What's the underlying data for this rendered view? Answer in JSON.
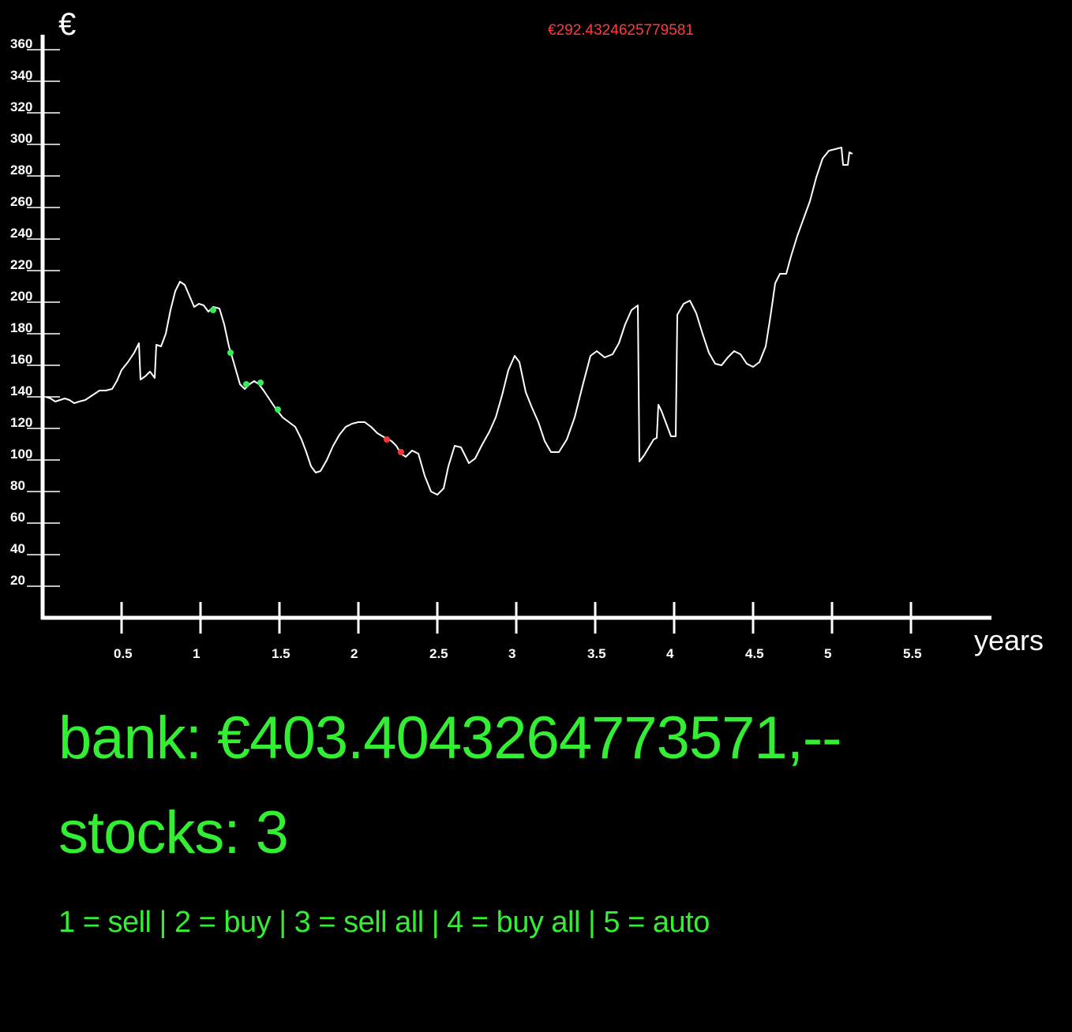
{
  "chart_data": {
    "type": "line",
    "title": "",
    "ylabel": "€",
    "xlabel": "years",
    "current_price_label": "€292.4324625779581",
    "xlim": [
      0,
      6
    ],
    "ylim": [
      0,
      370
    ],
    "y_ticks": [
      20,
      40,
      60,
      80,
      100,
      120,
      140,
      160,
      180,
      200,
      220,
      240,
      260,
      280,
      300,
      320,
      340,
      360
    ],
    "x_ticks": [
      0.5,
      1,
      1.5,
      2,
      2.5,
      3,
      3.5,
      4,
      4.5,
      5,
      5.5
    ],
    "x_tick_labels": [
      "0.5",
      "1",
      "1.5",
      "2",
      "2.5",
      "3",
      "3.5",
      "4",
      "4.5",
      "5",
      "5.5"
    ],
    "grid": false,
    "series": [
      {
        "color": "#ffffff",
        "points": [
          [
            0.02,
            140
          ],
          [
            0.05,
            139
          ],
          [
            0.08,
            137
          ],
          [
            0.11,
            138
          ],
          [
            0.14,
            139
          ],
          [
            0.17,
            138
          ],
          [
            0.2,
            136
          ],
          [
            0.23,
            137
          ],
          [
            0.27,
            138
          ],
          [
            0.3,
            140
          ],
          [
            0.33,
            142
          ],
          [
            0.36,
            144
          ],
          [
            0.4,
            144
          ],
          [
            0.44,
            145
          ],
          [
            0.47,
            150
          ],
          [
            0.5,
            157
          ],
          [
            0.54,
            162
          ],
          [
            0.58,
            168
          ],
          [
            0.61,
            174
          ],
          [
            0.62,
            151
          ],
          [
            0.65,
            153
          ],
          [
            0.68,
            156
          ],
          [
            0.71,
            152
          ],
          [
            0.72,
            173
          ],
          [
            0.75,
            172
          ],
          [
            0.78,
            180
          ],
          [
            0.81,
            195
          ],
          [
            0.84,
            207
          ],
          [
            0.87,
            213
          ],
          [
            0.9,
            211
          ],
          [
            0.93,
            204
          ],
          [
            0.96,
            197
          ],
          [
            0.99,
            199
          ],
          [
            1.02,
            198
          ],
          [
            1.05,
            194
          ],
          [
            1.08,
            197
          ],
          [
            1.12,
            196
          ],
          [
            1.15,
            186
          ],
          [
            1.18,
            172
          ],
          [
            1.21,
            162
          ],
          [
            1.23,
            155
          ],
          [
            1.25,
            148
          ],
          [
            1.28,
            145
          ],
          [
            1.31,
            148
          ],
          [
            1.34,
            150
          ],
          [
            1.37,
            148
          ],
          [
            1.4,
            144
          ],
          [
            1.44,
            138
          ],
          [
            1.48,
            132
          ],
          [
            1.52,
            127
          ],
          [
            1.56,
            124
          ],
          [
            1.6,
            121
          ],
          [
            1.64,
            113
          ],
          [
            1.67,
            105
          ],
          [
            1.7,
            96
          ],
          [
            1.73,
            92
          ],
          [
            1.76,
            93
          ],
          [
            1.8,
            100
          ],
          [
            1.84,
            109
          ],
          [
            1.88,
            116
          ],
          [
            1.92,
            121
          ],
          [
            1.96,
            123
          ],
          [
            2.0,
            124
          ],
          [
            2.04,
            124
          ],
          [
            2.08,
            121
          ],
          [
            2.12,
            117
          ],
          [
            2.17,
            114
          ],
          [
            2.21,
            112
          ],
          [
            2.24,
            109
          ],
          [
            2.27,
            104
          ],
          [
            2.3,
            102
          ],
          [
            2.34,
            106
          ],
          [
            2.38,
            104
          ],
          [
            2.42,
            90
          ],
          [
            2.46,
            80
          ],
          [
            2.5,
            78
          ],
          [
            2.54,
            82
          ],
          [
            2.57,
            96
          ],
          [
            2.61,
            109
          ],
          [
            2.65,
            108
          ],
          [
            2.7,
            98
          ],
          [
            2.74,
            101
          ],
          [
            2.78,
            109
          ],
          [
            2.83,
            118
          ],
          [
            2.87,
            127
          ],
          [
            2.91,
            141
          ],
          [
            2.95,
            157
          ],
          [
            2.99,
            166
          ],
          [
            3.02,
            162
          ],
          [
            3.06,
            143
          ],
          [
            3.1,
            133
          ],
          [
            3.14,
            124
          ],
          [
            3.18,
            112
          ],
          [
            3.22,
            105
          ],
          [
            3.27,
            105
          ],
          [
            3.32,
            113
          ],
          [
            3.37,
            127
          ],
          [
            3.42,
            147
          ],
          [
            3.47,
            166
          ],
          [
            3.51,
            169
          ],
          [
            3.56,
            165
          ],
          [
            3.61,
            167
          ],
          [
            3.65,
            174
          ],
          [
            3.69,
            186
          ],
          [
            3.73,
            195
          ],
          [
            3.77,
            198
          ],
          [
            3.78,
            99
          ],
          [
            3.81,
            103
          ],
          [
            3.84,
            108
          ],
          [
            3.87,
            113
          ],
          [
            3.89,
            114
          ],
          [
            3.9,
            135
          ],
          [
            3.92,
            131
          ],
          [
            3.95,
            123
          ],
          [
            3.98,
            115
          ],
          [
            4.01,
            115
          ],
          [
            4.02,
            192
          ],
          [
            4.06,
            199
          ],
          [
            4.1,
            201
          ],
          [
            4.14,
            193
          ],
          [
            4.18,
            180
          ],
          [
            4.22,
            168
          ],
          [
            4.26,
            161
          ],
          [
            4.3,
            160
          ],
          [
            4.34,
            165
          ],
          [
            4.38,
            169
          ],
          [
            4.42,
            167
          ],
          [
            4.46,
            161
          ],
          [
            4.5,
            159
          ],
          [
            4.54,
            162
          ],
          [
            4.58,
            172
          ],
          [
            4.61,
            191
          ],
          [
            4.64,
            212
          ],
          [
            4.67,
            218
          ],
          [
            4.71,
            218
          ],
          [
            4.74,
            229
          ],
          [
            4.78,
            242
          ],
          [
            4.82,
            253
          ],
          [
            4.86,
            264
          ],
          [
            4.9,
            279
          ],
          [
            4.94,
            291
          ],
          [
            4.98,
            296
          ],
          [
            5.02,
            297
          ],
          [
            5.06,
            298
          ],
          [
            5.07,
            287
          ],
          [
            5.1,
            287
          ],
          [
            5.11,
            295
          ],
          [
            5.13,
            294
          ]
        ],
        "markers": [
          {
            "x": 1.08,
            "y": 195,
            "color": "#33ee55"
          },
          {
            "x": 1.19,
            "y": 168,
            "color": "#33ee55"
          },
          {
            "x": 1.29,
            "y": 148,
            "color": "#33ee55"
          },
          {
            "x": 1.38,
            "y": 149,
            "color": "#33ee55"
          },
          {
            "x": 1.49,
            "y": 132,
            "color": "#33ee55"
          },
          {
            "x": 2.18,
            "y": 113,
            "color": "#ff3333"
          },
          {
            "x": 2.27,
            "y": 105,
            "color": "#ff3333"
          }
        ]
      }
    ]
  },
  "info": {
    "bank": "bank: €403.4043264773571,--",
    "stocks": "stocks: 3",
    "controls": "1 = sell | 2 = buy | 3 = sell all | 4 = buy all | 5 = auto"
  },
  "colors": {
    "background": "#000000",
    "axis": "#ffffff",
    "line": "#ffffff",
    "info_text": "#33ee33",
    "price_label": "#ff3b3b"
  }
}
